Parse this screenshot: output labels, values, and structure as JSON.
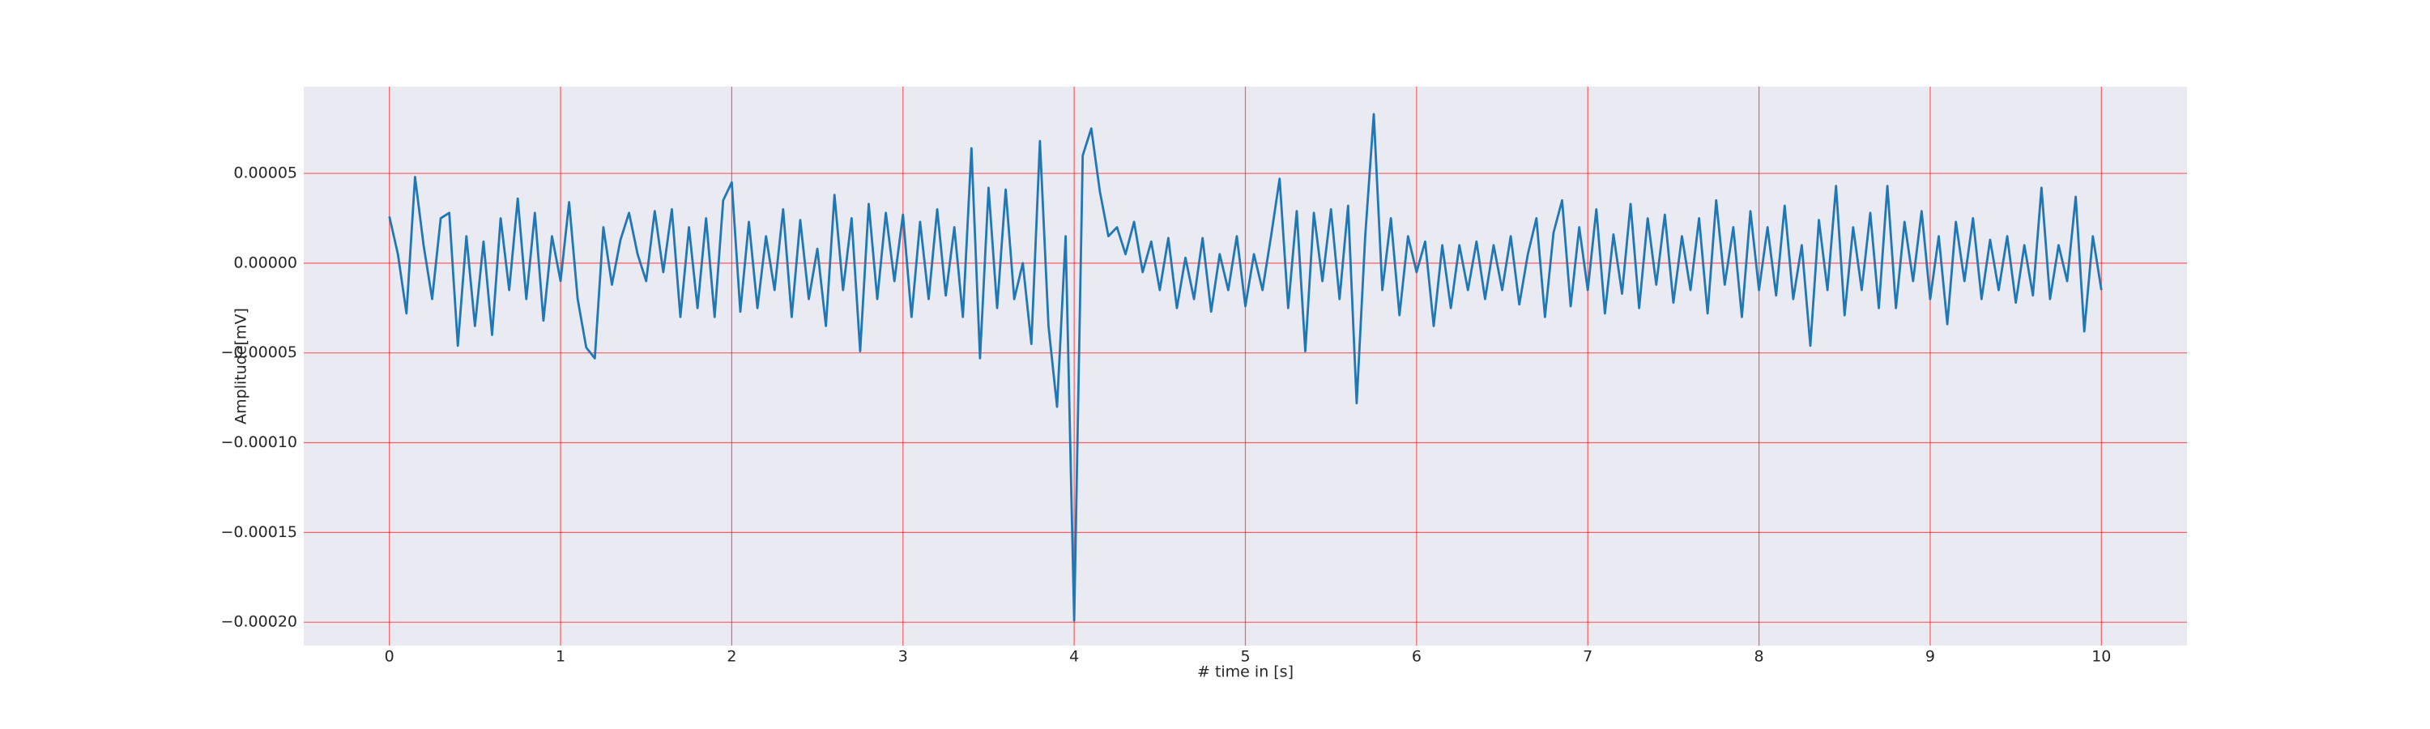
{
  "chart_data": {
    "type": "line",
    "xlabel": "# time in [s]",
    "ylabel": "Amplitude[mV]",
    "color": "#1f77b4",
    "grid": true,
    "grid_color": "#ff0000",
    "background": "#eaeaf2",
    "xlim": [
      -0.5,
      10.5
    ],
    "ylim": [
      -0.000213,
      9.83e-05
    ],
    "xticks": [
      0,
      1,
      2,
      3,
      4,
      5,
      6,
      7,
      8,
      9,
      10
    ],
    "yticks": [
      {
        "value": -0.0002,
        "label": "−0.00020"
      },
      {
        "value": -0.00015,
        "label": "−0.00015"
      },
      {
        "value": -0.0001,
        "label": "−0.00010"
      },
      {
        "value": -5e-05,
        "label": "−0.00005"
      },
      {
        "value": 0,
        "label": "0.00000"
      },
      {
        "value": 5e-05,
        "label": "0.00005"
      }
    ],
    "x": [
      0,
      0.05,
      0.1,
      0.15,
      0.2,
      0.25,
      0.3,
      0.35,
      0.4,
      0.45,
      0.5,
      0.55,
      0.6,
      0.65,
      0.7,
      0.75,
      0.8,
      0.85,
      0.9,
      0.95,
      1,
      1.05,
      1.1,
      1.15,
      1.2,
      1.25,
      1.3,
      1.35,
      1.4,
      1.45,
      1.5,
      1.55,
      1.6,
      1.65,
      1.7,
      1.75,
      1.8,
      1.85,
      1.9,
      1.95,
      2,
      2.05,
      2.1,
      2.15,
      2.2,
      2.25,
      2.3,
      2.35,
      2.4,
      2.45,
      2.5,
      2.55,
      2.6,
      2.65,
      2.7,
      2.75,
      2.8,
      2.85,
      2.9,
      2.95,
      3,
      3.05,
      3.1,
      3.15,
      3.2,
      3.25,
      3.3,
      3.35,
      3.4,
      3.45,
      3.5,
      3.55,
      3.6,
      3.65,
      3.7,
      3.75,
      3.8,
      3.85,
      3.9,
      3.95,
      4,
      4.05,
      4.1,
      4.15,
      4.2,
      4.25,
      4.3,
      4.35,
      4.4,
      4.45,
      4.5,
      4.55,
      4.6,
      4.65,
      4.7,
      4.75,
      4.8,
      4.85,
      4.9,
      4.95,
      5,
      5.05,
      5.1,
      5.15,
      5.2,
      5.25,
      5.3,
      5.35,
      5.4,
      5.45,
      5.5,
      5.55,
      5.6,
      5.65,
      5.7,
      5.75,
      5.8,
      5.85,
      5.9,
      5.95,
      6,
      6.05,
      6.1,
      6.15,
      6.2,
      6.25,
      6.3,
      6.35,
      6.4,
      6.45,
      6.5,
      6.55,
      6.6,
      6.65,
      6.7,
      6.75,
      6.8,
      6.85,
      6.9,
      6.95,
      7,
      7.05,
      7.1,
      7.15,
      7.2,
      7.25,
      7.3,
      7.35,
      7.4,
      7.45,
      7.5,
      7.55,
      7.6,
      7.65,
      7.7,
      7.75,
      7.8,
      7.85,
      7.9,
      7.95,
      8,
      8.05,
      8.1,
      8.15,
      8.2,
      8.25,
      8.3,
      8.35,
      8.4,
      8.45,
      8.5,
      8.55,
      8.6,
      8.65,
      8.7,
      8.75,
      8.8,
      8.85,
      8.9,
      8.95,
      9,
      9.05,
      9.1,
      9.15,
      9.2,
      9.25,
      9.3,
      9.35,
      9.4,
      9.45,
      9.5,
      9.55,
      9.6,
      9.65,
      9.7,
      9.75,
      9.8,
      9.85,
      9.9,
      9.95,
      10
    ],
    "values": [
      2.6e-05,
      5e-06,
      -2.8e-05,
      4.8e-05,
      1e-05,
      -2e-05,
      2.5e-05,
      2.8e-05,
      -4.6e-05,
      1.5e-05,
      -3.5e-05,
      1.2e-05,
      -4e-05,
      2.5e-05,
      -1.5e-05,
      3.6e-05,
      -2e-05,
      2.8e-05,
      -3.2e-05,
      1.5e-05,
      -1e-05,
      3.4e-05,
      -2e-05,
      -4.7e-05,
      -5.3e-05,
      2e-05,
      -1.2e-05,
      1.3e-05,
      2.8e-05,
      5e-06,
      -1e-05,
      2.9e-05,
      -5e-06,
      3e-05,
      -3e-05,
      2e-05,
      -2.5e-05,
      2.5e-05,
      -3e-05,
      3.5e-05,
      4.5e-05,
      -2.7e-05,
      2.3e-05,
      -2.5e-05,
      1.5e-05,
      -1.5e-05,
      3e-05,
      -3e-05,
      2.4e-05,
      -2e-05,
      8e-06,
      -3.5e-05,
      3.8e-05,
      -1.5e-05,
      2.5e-05,
      -4.9e-05,
      3.3e-05,
      -2e-05,
      2.8e-05,
      -1e-05,
      2.7e-05,
      -3e-05,
      2.3e-05,
      -2e-05,
      3e-05,
      -1.8e-05,
      2e-05,
      -3e-05,
      6.4e-05,
      -5.3e-05,
      4.2e-05,
      -2.5e-05,
      4.1e-05,
      -2e-05,
      0,
      -4.5e-05,
      6.8e-05,
      -3.5e-05,
      -8e-05,
      1.5e-05,
      -0.000199,
      6e-05,
      7.5e-05,
      4e-05,
      1.5e-05,
      2e-05,
      5e-06,
      2.3e-05,
      -5e-06,
      1.2e-05,
      -1.5e-05,
      1.4e-05,
      -2.5e-05,
      3e-06,
      -2e-05,
      1.4e-05,
      -2.7e-05,
      5e-06,
      -1.5e-05,
      1.5e-05,
      -2.4e-05,
      5e-06,
      -1.5e-05,
      1.5e-05,
      4.7e-05,
      -2.5e-05,
      2.9e-05,
      -4.9e-05,
      2.8e-05,
      -1e-05,
      3e-05,
      -2e-05,
      3.2e-05,
      -7.8e-05,
      1.5e-05,
      8.3e-05,
      -1.5e-05,
      2.5e-05,
      -2.9e-05,
      1.5e-05,
      -5e-06,
      1.2e-05,
      -3.5e-05,
      1e-05,
      -2.5e-05,
      1e-05,
      -1.5e-05,
      1.2e-05,
      -2e-05,
      1e-05,
      -1.5e-05,
      1.5e-05,
      -2.3e-05,
      5e-06,
      2.5e-05,
      -3e-05,
      1.7e-05,
      3.5e-05,
      -2.4e-05,
      2e-05,
      -1.5e-05,
      3e-05,
      -2.8e-05,
      1.6e-05,
      -1.7e-05,
      3.3e-05,
      -2.5e-05,
      2.5e-05,
      -1.2e-05,
      2.7e-05,
      -2.2e-05,
      1.5e-05,
      -1.5e-05,
      2.5e-05,
      -2.8e-05,
      3.5e-05,
      -1.2e-05,
      2e-05,
      -3e-05,
      2.9e-05,
      -1.5e-05,
      2e-05,
      -1.8e-05,
      3.2e-05,
      -2e-05,
      1e-05,
      -4.6e-05,
      2.4e-05,
      -1.5e-05,
      4.3e-05,
      -2.9e-05,
      2e-05,
      -1.5e-05,
      2.8e-05,
      -2.5e-05,
      4.3e-05,
      -2.5e-05,
      2.3e-05,
      -1e-05,
      2.9e-05,
      -2e-05,
      1.5e-05,
      -3.4e-05,
      2.3e-05,
      -1e-05,
      2.5e-05,
      -2e-05,
      1.3e-05,
      -1.5e-05,
      1.5e-05,
      -2.2e-05,
      1e-05,
      -1.8e-05,
      4.2e-05,
      -2e-05,
      1e-05,
      -1e-05,
      3.7e-05,
      -3.8e-05,
      1.5e-05,
      -1.5e-05
    ]
  }
}
